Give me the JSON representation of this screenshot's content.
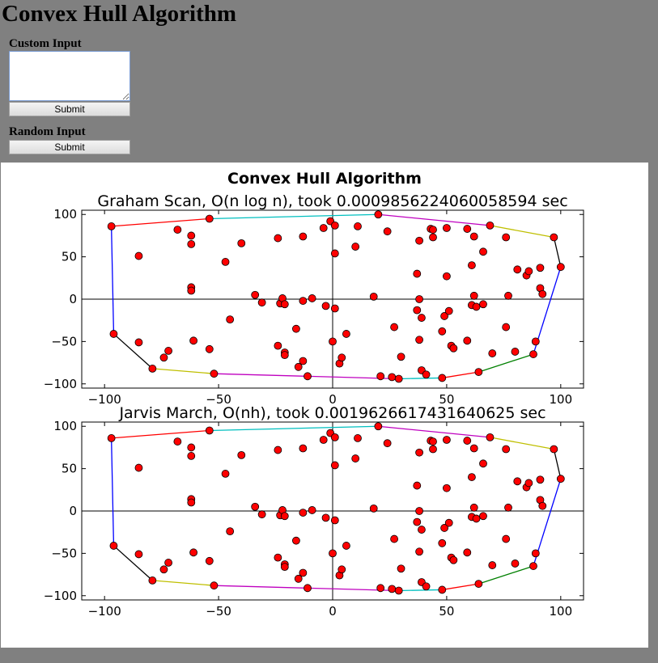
{
  "page": {
    "title": "Convex Hull Algorithm"
  },
  "custom_input": {
    "label": "Custom Input",
    "value": "",
    "submit_label": "Submit"
  },
  "random_input": {
    "label": "Random Input",
    "submit_label": "Submit"
  },
  "chart_data": {
    "suptitle": "Convex Hull Algorithm",
    "point_color": "#ff0000",
    "edge_colors": [
      "#ff0000",
      "#00bfbf",
      "#bf00bf",
      "#bfbf00",
      "#000000",
      "#0000ff",
      "#008000"
    ],
    "points": [
      [
        -97,
        86
      ],
      [
        -96,
        -41
      ],
      [
        -85,
        51
      ],
      [
        -85,
        -51
      ],
      [
        -79,
        -82
      ],
      [
        -72,
        -61
      ],
      [
        -74,
        -69
      ],
      [
        -68,
        82
      ],
      [
        -62,
        75
      ],
      [
        -62,
        65
      ],
      [
        -62,
        14
      ],
      [
        -62,
        10
      ],
      [
        -61,
        -49
      ],
      [
        -54,
        95
      ],
      [
        -54,
        -59
      ],
      [
        -52,
        -88
      ],
      [
        -47,
        44
      ],
      [
        -45,
        -24
      ],
      [
        -40,
        66
      ],
      [
        -34,
        5
      ],
      [
        -31,
        -4
      ],
      [
        -24,
        72
      ],
      [
        -24,
        -55
      ],
      [
        -23,
        -5
      ],
      [
        -22,
        1
      ],
      [
        -21,
        -6
      ],
      [
        -21,
        -63
      ],
      [
        -21,
        -66
      ],
      [
        -16,
        -35
      ],
      [
        -15,
        -80
      ],
      [
        -13,
        74
      ],
      [
        -13,
        -2
      ],
      [
        -13,
        -73
      ],
      [
        -11,
        -91
      ],
      [
        -9,
        1
      ],
      [
        -4,
        84
      ],
      [
        -3,
        -8
      ],
      [
        -1,
        92
      ],
      [
        0,
        -50
      ],
      [
        1,
        87
      ],
      [
        1,
        54
      ],
      [
        1,
        -11
      ],
      [
        3,
        -76
      ],
      [
        4,
        -69
      ],
      [
        6,
        -41
      ],
      [
        10,
        62
      ],
      [
        11,
        86
      ],
      [
        18,
        3
      ],
      [
        20,
        100
      ],
      [
        21,
        -91
      ],
      [
        24,
        80
      ],
      [
        26,
        -92
      ],
      [
        27,
        -33
      ],
      [
        29,
        -94
      ],
      [
        30,
        -68
      ],
      [
        37,
        30
      ],
      [
        37,
        -13
      ],
      [
        38,
        -48
      ],
      [
        38,
        69
      ],
      [
        38,
        0
      ],
      [
        39,
        -84
      ],
      [
        39,
        -22
      ],
      [
        41,
        -89
      ],
      [
        43,
        83
      ],
      [
        44,
        82
      ],
      [
        44,
        73
      ],
      [
        48,
        -93
      ],
      [
        48,
        -38
      ],
      [
        49,
        -20
      ],
      [
        50,
        27
      ],
      [
        50,
        84
      ],
      [
        51,
        -14
      ],
      [
        52,
        -55
      ],
      [
        53,
        -58
      ],
      [
        59,
        83
      ],
      [
        59,
        -49
      ],
      [
        61,
        -7
      ],
      [
        61,
        40
      ],
      [
        62,
        74
      ],
      [
        62,
        4
      ],
      [
        63,
        -9
      ],
      [
        64,
        -86
      ],
      [
        66,
        -6
      ],
      [
        66,
        56
      ],
      [
        69,
        87
      ],
      [
        70,
        -64
      ],
      [
        76,
        -33
      ],
      [
        76,
        73
      ],
      [
        77,
        4
      ],
      [
        80,
        -62
      ],
      [
        81,
        35
      ],
      [
        85,
        28
      ],
      [
        86,
        33
      ],
      [
        88,
        -65
      ],
      [
        89,
        -50
      ],
      [
        91,
        37
      ],
      [
        91,
        13
      ],
      [
        92,
        6
      ],
      [
        97,
        73
      ],
      [
        100,
        38
      ]
    ],
    "hull": [
      [
        -97,
        86
      ],
      [
        -54,
        95
      ],
      [
        20,
        100
      ],
      [
        69,
        87
      ],
      [
        97,
        73
      ],
      [
        100,
        38
      ],
      [
        88,
        -65
      ],
      [
        64,
        -86
      ],
      [
        48,
        -93
      ],
      [
        29,
        -94
      ],
      [
        -52,
        -88
      ],
      [
        -79,
        -82
      ],
      [
        -96,
        -41
      ]
    ],
    "subplots": [
      {
        "title": "Graham Scan, O(n log n), took 0.0009856224060058594 sec",
        "xlim": [
          -110,
          110
        ],
        "ylim": [
          -105,
          105
        ],
        "xticks": [
          -100,
          -50,
          0,
          50,
          100
        ],
        "yticks": [
          -100,
          -50,
          0,
          50,
          100
        ],
        "xtick_labels": [
          "−100",
          "−50",
          "0",
          "50",
          "100"
        ],
        "ytick_labels": [
          "−100",
          "−50",
          "0",
          "50",
          "100"
        ]
      },
      {
        "title": "Jarvis March, O(nh), took 0.001962661743164062 5 sec",
        "xlim": [
          -110,
          110
        ],
        "ylim": [
          -105,
          105
        ],
        "xticks": [
          -100,
          -50,
          0,
          50,
          100
        ],
        "yticks": [
          -100,
          -50,
          0,
          50,
          100
        ],
        "xtick_labels": [
          "−100",
          "−50",
          "0",
          "50",
          "100"
        ],
        "ytick_labels": [
          "−100",
          "−50",
          "0",
          "50",
          "100"
        ]
      }
    ]
  }
}
